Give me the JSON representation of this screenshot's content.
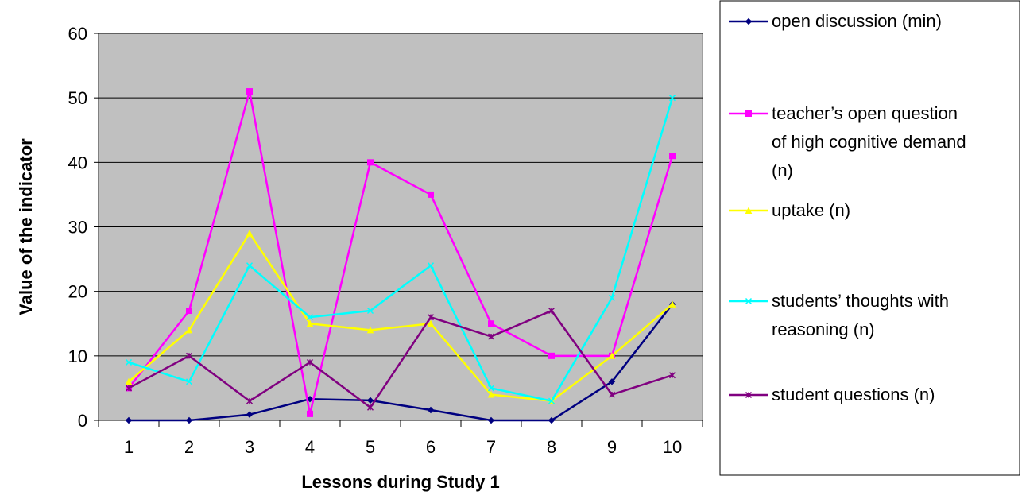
{
  "chart_data": {
    "type": "line",
    "title": "",
    "xlabel": "Lessons during Study 1",
    "ylabel": "Value of the indicator",
    "ylim": [
      0,
      60
    ],
    "yticks": [
      0,
      10,
      20,
      30,
      40,
      50,
      60
    ],
    "categories": [
      "1",
      "2",
      "3",
      "4",
      "5",
      "6",
      "7",
      "8",
      "9",
      "10"
    ],
    "grid": "horizontal",
    "plot_background": "#c0c0c0",
    "legend_position": "right",
    "series": [
      {
        "name": "open discussion (min)",
        "legend_lines": [
          "open discussion (min)"
        ],
        "color": "#000080",
        "marker": "diamond",
        "values": [
          0,
          0,
          0.9,
          3.3,
          3.1,
          1.6,
          0,
          0,
          6,
          18
        ]
      },
      {
        "name": "teacher’s open question of high cognitive demand (n)",
        "legend_lines": [
          "teacher’s open question",
          "of high cognitive demand",
          "(n)"
        ],
        "color": "#ff00ff",
        "marker": "square",
        "values": [
          5,
          17,
          51,
          1,
          40,
          35,
          15,
          10,
          10,
          41
        ]
      },
      {
        "name": "uptake (n)",
        "legend_lines": [
          "uptake (n)"
        ],
        "color": "#ffff00",
        "marker": "triangle",
        "values": [
          6,
          14,
          29,
          15,
          14,
          15,
          4,
          3,
          10,
          18
        ]
      },
      {
        "name": "students’ thoughts with reasoning (n)",
        "legend_lines": [
          "students’ thoughts with",
          "reasoning  (n)"
        ],
        "color": "#00ffff",
        "marker": "x",
        "values": [
          9,
          6,
          24,
          16,
          17,
          24,
          5,
          3,
          19,
          50
        ]
      },
      {
        "name": "student questions (n)",
        "legend_lines": [
          "student questions (n)"
        ],
        "color": "#800080",
        "marker": "star",
        "values": [
          5,
          10,
          3,
          9,
          2,
          16,
          13,
          17,
          4,
          7
        ]
      }
    ]
  }
}
